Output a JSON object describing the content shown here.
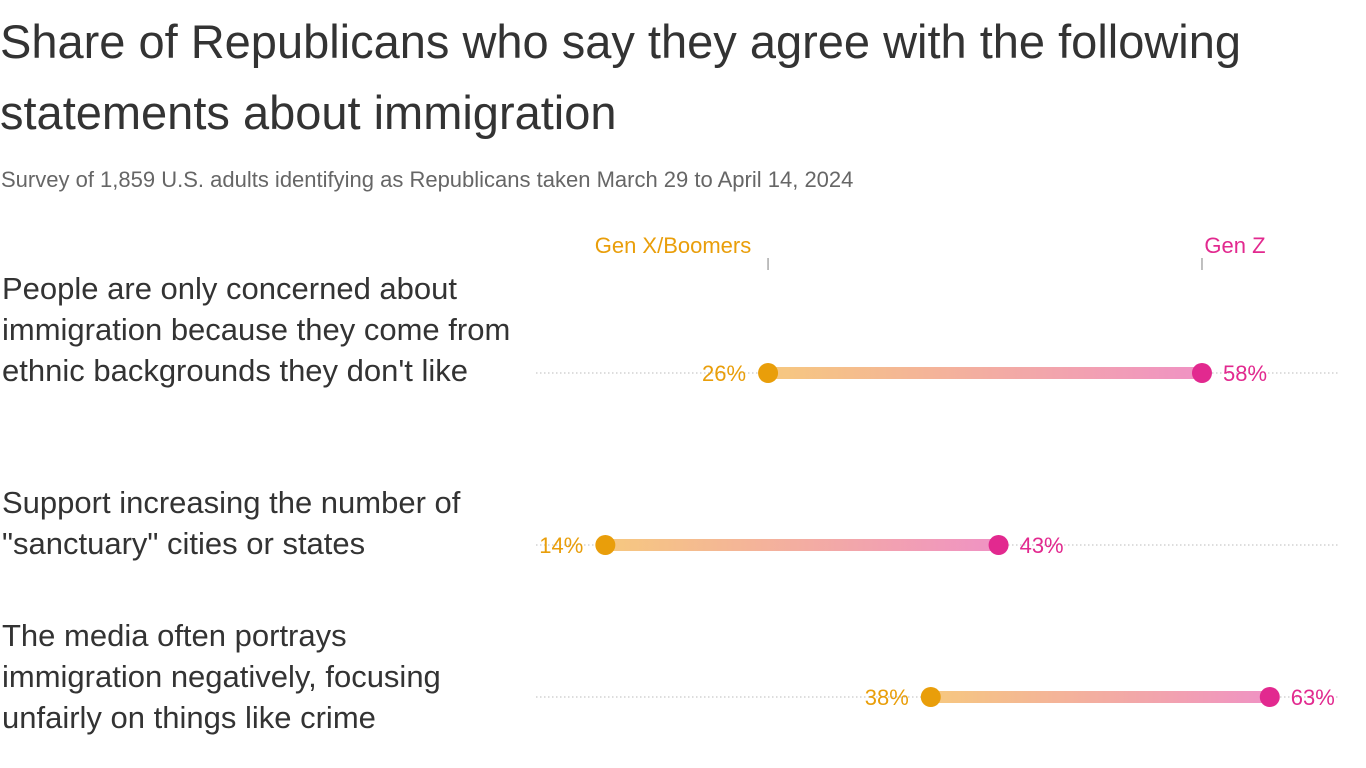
{
  "title": "Share of Republicans who say they agree with the following statements about immigration",
  "subtitle": "Survey of 1,859 U.S. adults identifying as Republicans taken March 29 to April 14, 2024",
  "colors": {
    "gen_x_boomers": "#e99e0a",
    "gen_z": "#e2298f",
    "bar_start": "#f6c87f",
    "bar_end": "#f092c4"
  },
  "chart_data": {
    "type": "dumbbell",
    "title": "Share of Republicans who say they agree with the following statements about immigration",
    "subtitle": "Survey of 1,859 U.S. adults identifying as Republicans taken March 29 to April 14, 2024",
    "unit": "%",
    "legend_placement": "top",
    "grid": false,
    "categories": [
      "People are only concerned about immigration because they come from ethnic backgrounds they don't like",
      "Support increasing the number of \"sanctuary\" cities or states",
      "The media often portrays immigration negatively, focusing unfairly on things like crime"
    ],
    "series": [
      {
        "name": "Gen X/Boomers",
        "values": [
          26,
          14,
          38
        ],
        "labels": [
          "26%",
          "14%",
          "38%"
        ]
      },
      {
        "name": "Gen Z",
        "values": [
          58,
          43,
          63
        ],
        "labels": [
          "58%",
          "43%",
          "63%"
        ]
      }
    ]
  }
}
